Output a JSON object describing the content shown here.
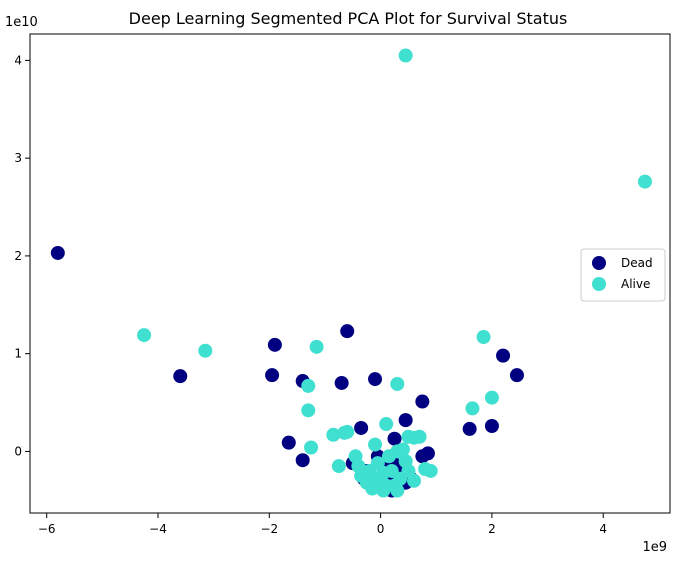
{
  "chart_data": {
    "type": "scatter",
    "title": "Deep Learning Segmented PCA Plot for Survival Status",
    "xlabel": "",
    "ylabel": "",
    "x_offset_label": "1e9",
    "y_offset_label": "1e10",
    "xlim": [
      -6.3,
      5.2
    ],
    "ylim": [
      -0.63,
      4.27
    ],
    "x_ticks": [
      -6,
      -4,
      -2,
      0,
      2,
      4
    ],
    "y_ticks": [
      0,
      1,
      2,
      3,
      4
    ],
    "x_tick_labels": [
      "−6",
      "−4",
      "−2",
      "0",
      "2",
      "4"
    ],
    "y_tick_labels": [
      "0",
      "1",
      "2",
      "3",
      "4"
    ],
    "grid": false,
    "legend_position": "center-right",
    "series": [
      {
        "name": "Dead",
        "color": "#000080",
        "points": [
          [
            -5.8,
            2.03
          ],
          [
            -3.6,
            0.77
          ],
          [
            -1.9,
            1.09
          ],
          [
            -1.95,
            0.78
          ],
          [
            -1.4,
            0.72
          ],
          [
            -0.6,
            1.23
          ],
          [
            -0.7,
            0.7
          ],
          [
            -0.1,
            0.74
          ],
          [
            -0.35,
            0.24
          ],
          [
            -1.65,
            0.09
          ],
          [
            -1.4,
            -0.09
          ],
          [
            0.45,
            0.32
          ],
          [
            0.75,
            0.51
          ],
          [
            1.6,
            0.23
          ],
          [
            2.0,
            0.26
          ],
          [
            2.2,
            0.98
          ],
          [
            2.45,
            0.78
          ],
          [
            0.25,
            0.13
          ],
          [
            0.75,
            -0.05
          ],
          [
            0.85,
            -0.02
          ],
          [
            0.2,
            -0.08
          ],
          [
            -0.05,
            -0.05
          ],
          [
            0.35,
            -0.15
          ],
          [
            0.45,
            -0.32
          ],
          [
            -0.25,
            -0.2
          ],
          [
            0.15,
            -0.25
          ],
          [
            0.0,
            -0.35
          ],
          [
            0.3,
            -0.38
          ],
          [
            -0.5,
            -0.12
          ],
          [
            0.55,
            -0.28
          ],
          [
            0.1,
            -0.12
          ],
          [
            -0.15,
            -0.3
          ],
          [
            0.4,
            -0.22
          ],
          [
            0.2,
            -0.4
          ],
          [
            -0.3,
            -0.28
          ]
        ]
      },
      {
        "name": "Alive",
        "color": "#40E0D0",
        "points": [
          [
            0.45,
            4.05
          ],
          [
            4.75,
            2.76
          ],
          [
            -4.25,
            1.19
          ],
          [
            -3.15,
            1.03
          ],
          [
            -1.15,
            1.07
          ],
          [
            -1.3,
            0.67
          ],
          [
            -1.3,
            0.42
          ],
          [
            1.85,
            1.17
          ],
          [
            1.65,
            0.44
          ],
          [
            2.0,
            0.55
          ],
          [
            0.3,
            0.69
          ],
          [
            0.1,
            0.28
          ],
          [
            -0.6,
            0.2
          ],
          [
            -0.65,
            0.19
          ],
          [
            -0.85,
            0.17
          ],
          [
            -1.25,
            0.04
          ],
          [
            -0.75,
            -0.15
          ],
          [
            -0.45,
            -0.05
          ],
          [
            -0.4,
            -0.15
          ],
          [
            -0.1,
            0.07
          ],
          [
            0.5,
            0.15
          ],
          [
            0.6,
            0.14
          ],
          [
            0.7,
            0.15
          ],
          [
            0.4,
            0.02
          ],
          [
            0.3,
            0.0
          ],
          [
            0.8,
            -0.18
          ],
          [
            0.9,
            -0.2
          ],
          [
            0.5,
            -0.2
          ],
          [
            -0.35,
            -0.25
          ],
          [
            -0.2,
            -0.2
          ],
          [
            -0.1,
            -0.28
          ],
          [
            0.0,
            -0.3
          ],
          [
            0.1,
            -0.35
          ],
          [
            0.25,
            -0.35
          ],
          [
            0.2,
            -0.2
          ],
          [
            -0.05,
            -0.12
          ],
          [
            0.15,
            -0.05
          ],
          [
            0.35,
            -0.28
          ],
          [
            0.05,
            -0.22
          ],
          [
            -0.25,
            -0.32
          ],
          [
            0.45,
            -0.1
          ],
          [
            0.6,
            -0.3
          ],
          [
            0.3,
            -0.4
          ],
          [
            -0.15,
            -0.38
          ],
          [
            0.05,
            -0.4
          ]
        ]
      }
    ]
  }
}
